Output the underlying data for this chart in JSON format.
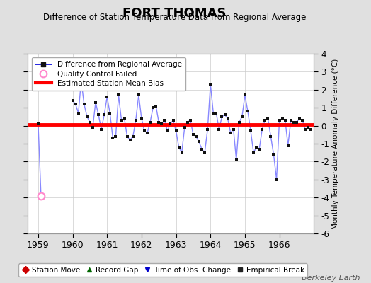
{
  "title": "FORT THOMAS",
  "subtitle": "Difference of Station Temperature Data from Regional Average",
  "ylabel_right": "Monthly Temperature Anomaly Difference (°C)",
  "watermark": "Berkeley Earth",
  "ylim": [
    -6,
    4
  ],
  "yticks": [
    -6,
    -5,
    -4,
    -3,
    -2,
    -1,
    0,
    1,
    2,
    3,
    4
  ],
  "bias_level": 0.05,
  "line_color": "#8888ff",
  "bias_color": "#ff0000",
  "background_color": "#e0e0e0",
  "plot_bg_color": "#ffffff",
  "time_values": [
    1959.0,
    1959.083,
    1960.0,
    1960.083,
    1960.167,
    1960.25,
    1960.333,
    1960.417,
    1960.5,
    1960.583,
    1960.667,
    1960.75,
    1960.833,
    1960.917,
    1961.0,
    1961.083,
    1961.167,
    1961.25,
    1961.333,
    1961.417,
    1961.5,
    1961.583,
    1961.667,
    1961.75,
    1961.833,
    1961.917,
    1962.0,
    1962.083,
    1962.167,
    1962.25,
    1962.333,
    1962.417,
    1962.5,
    1962.583,
    1962.667,
    1962.75,
    1962.833,
    1962.917,
    1963.0,
    1963.083,
    1963.167,
    1963.25,
    1963.333,
    1963.417,
    1963.5,
    1963.583,
    1963.667,
    1963.75,
    1963.833,
    1963.917,
    1964.0,
    1964.083,
    1964.167,
    1964.25,
    1964.333,
    1964.417,
    1964.5,
    1964.583,
    1964.667,
    1964.75,
    1964.833,
    1964.917,
    1965.0,
    1965.083,
    1965.167,
    1965.25,
    1965.333,
    1965.417,
    1965.5,
    1965.583,
    1965.667,
    1965.75,
    1965.833,
    1965.917,
    1966.0,
    1966.083,
    1966.167,
    1966.25,
    1966.333,
    1966.417,
    1966.5,
    1966.583,
    1966.667,
    1966.75,
    1966.833,
    1966.917
  ],
  "anomaly_values": [
    0.1,
    -3.9,
    1.4,
    1.2,
    0.7,
    2.5,
    1.2,
    0.5,
    0.2,
    -0.1,
    1.3,
    0.6,
    -0.2,
    0.6,
    1.6,
    0.7,
    -0.7,
    -0.6,
    1.7,
    0.3,
    0.4,
    -0.6,
    -0.8,
    -0.6,
    0.3,
    1.7,
    0.4,
    -0.3,
    -0.4,
    0.2,
    1.0,
    1.1,
    0.2,
    0.1,
    0.3,
    -0.3,
    0.1,
    0.3,
    -0.3,
    -1.2,
    -1.5,
    -0.1,
    0.2,
    0.3,
    -0.5,
    -0.6,
    -0.9,
    -1.3,
    -1.5,
    -0.2,
    2.3,
    0.7,
    0.7,
    -0.2,
    0.5,
    0.6,
    0.4,
    -0.4,
    -0.2,
    -1.9,
    0.2,
    0.5,
    1.7,
    0.8,
    -0.3,
    -1.5,
    -1.2,
    -1.3,
    -0.2,
    0.3,
    0.4,
    -0.6,
    -1.6,
    -3.0,
    0.3,
    0.4,
    0.3,
    -1.1,
    0.3,
    0.2,
    0.2,
    0.4,
    0.3,
    -0.2,
    -0.1,
    -0.2
  ],
  "line_segments": [
    [
      0,
      1
    ],
    [
      2,
      85
    ]
  ],
  "qc_failed_indices": [
    1
  ],
  "xtick_positions": [
    1959,
    1960,
    1961,
    1962,
    1963,
    1964,
    1965,
    1966
  ],
  "xtick_labels": [
    "1959",
    "1960",
    "1961",
    "1962",
    "1963",
    "1964",
    "1965",
    "1966"
  ],
  "xlim": [
    1958.7,
    1966.99
  ],
  "bottom_legend": [
    {
      "label": "Station Move",
      "marker": "D",
      "color": "#cc0000"
    },
    {
      "label": "Record Gap",
      "marker": "^",
      "color": "#006600"
    },
    {
      "label": "Time of Obs. Change",
      "marker": "v",
      "color": "#0000cc"
    },
    {
      "label": "Empirical Break",
      "marker": "s",
      "color": "#222222"
    }
  ]
}
